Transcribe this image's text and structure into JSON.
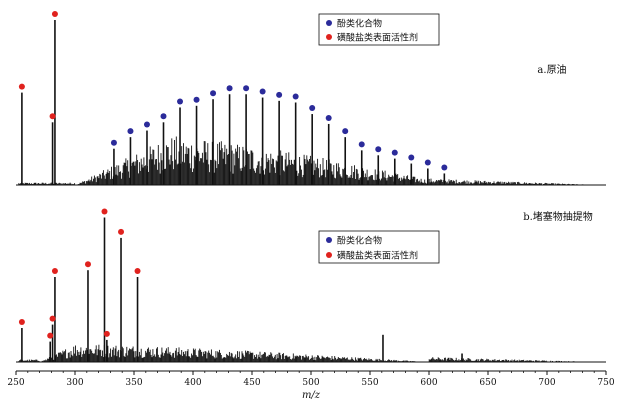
{
  "chart_data": {
    "type": "bar",
    "x_axis": {
      "label": "m/z",
      "range": [
        250,
        750
      ],
      "ticks": [
        250,
        300,
        350,
        400,
        450,
        500,
        550,
        600,
        650,
        700,
        750
      ]
    },
    "legend": {
      "entries": [
        {
          "label": "酚类化合物",
          "color": "#2b2b9a"
        },
        {
          "label": "磺酸盐类表面活性剂",
          "color": "#e0221e"
        }
      ]
    },
    "colors": {
      "bar": "#111111",
      "phenolic": "#2b2b9a",
      "sulfonate": "#e0221e"
    },
    "panels": [
      {
        "label": "a.原油",
        "legend_placement": "top-center",
        "envelope": {
          "start": 300,
          "peak": 380,
          "decay_end": 620,
          "max": 0.3,
          "tail_start": 600,
          "tail_end": 745,
          "tail_max": 0.04
        },
        "peaks": [
          {
            "mz": 255,
            "intensity": 0.56,
            "marker": "sulfonate"
          },
          {
            "mz": 281,
            "intensity": 0.38,
            "marker": "sulfonate"
          },
          {
            "mz": 283,
            "intensity": 1.0,
            "marker": "sulfonate"
          },
          {
            "mz": 333,
            "intensity": 0.22,
            "marker": "phenolic"
          },
          {
            "mz": 347,
            "intensity": 0.29,
            "marker": "phenolic"
          },
          {
            "mz": 361,
            "intensity": 0.33,
            "marker": "phenolic"
          },
          {
            "mz": 375,
            "intensity": 0.38,
            "marker": "phenolic"
          },
          {
            "mz": 389,
            "intensity": 0.47,
            "marker": "phenolic"
          },
          {
            "mz": 403,
            "intensity": 0.48,
            "marker": "phenolic"
          },
          {
            "mz": 417,
            "intensity": 0.52,
            "marker": "phenolic"
          },
          {
            "mz": 431,
            "intensity": 0.55,
            "marker": "phenolic"
          },
          {
            "mz": 445,
            "intensity": 0.55,
            "marker": "phenolic"
          },
          {
            "mz": 459,
            "intensity": 0.53,
            "marker": "phenolic"
          },
          {
            "mz": 473,
            "intensity": 0.51,
            "marker": "phenolic"
          },
          {
            "mz": 487,
            "intensity": 0.5,
            "marker": "phenolic"
          },
          {
            "mz": 501,
            "intensity": 0.43,
            "marker": "phenolic"
          },
          {
            "mz": 515,
            "intensity": 0.37,
            "marker": "phenolic"
          },
          {
            "mz": 529,
            "intensity": 0.29,
            "marker": "phenolic"
          },
          {
            "mz": 543,
            "intensity": 0.21,
            "marker": "phenolic"
          },
          {
            "mz": 557,
            "intensity": 0.18,
            "marker": "phenolic"
          },
          {
            "mz": 571,
            "intensity": 0.16,
            "marker": "phenolic"
          },
          {
            "mz": 585,
            "intensity": 0.13,
            "marker": "phenolic"
          },
          {
            "mz": 599,
            "intensity": 0.1,
            "marker": "phenolic"
          },
          {
            "mz": 613,
            "intensity": 0.07,
            "marker": "phenolic"
          }
        ]
      },
      {
        "label": "b.堵塞物抽提物",
        "legend_placement": "center",
        "envelope": {
          "start": 270,
          "peak": 300,
          "decay_end": 600,
          "max": 0.11,
          "tail_start": 600,
          "tail_end": 745,
          "tail_max": 0.03
        },
        "peaks": [
          {
            "mz": 255,
            "intensity": 0.2,
            "marker": "sulfonate"
          },
          {
            "mz": 279,
            "intensity": 0.12,
            "marker": "sulfonate"
          },
          {
            "mz": 281,
            "intensity": 0.22,
            "marker": "sulfonate"
          },
          {
            "mz": 283,
            "intensity": 0.5,
            "marker": "sulfonate"
          },
          {
            "mz": 311,
            "intensity": 0.54,
            "marker": "sulfonate"
          },
          {
            "mz": 325,
            "intensity": 0.85,
            "marker": "sulfonate"
          },
          {
            "mz": 327,
            "intensity": 0.13,
            "marker": "sulfonate"
          },
          {
            "mz": 339,
            "intensity": 0.73,
            "marker": "sulfonate"
          },
          {
            "mz": 353,
            "intensity": 0.5,
            "marker": "sulfonate"
          },
          {
            "mz": 561,
            "intensity": 0.16,
            "marker": null
          },
          {
            "mz": 628,
            "intensity": 0.05,
            "marker": null
          }
        ]
      }
    ]
  }
}
